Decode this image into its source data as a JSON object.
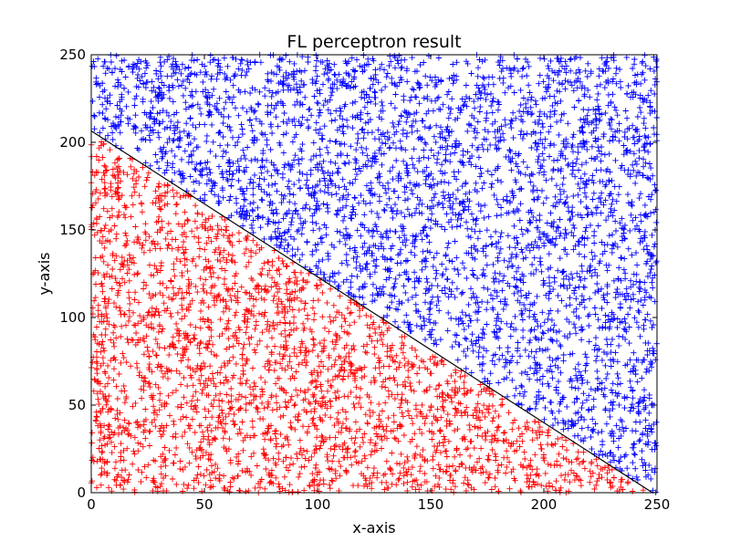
{
  "chart_data": {
    "type": "scatter",
    "title": "FL perceptron result",
    "xlabel": "x-axis",
    "ylabel": "y-axis",
    "xlim": [
      0,
      250
    ],
    "ylim": [
      0,
      250
    ],
    "xticks": [
      0,
      50,
      100,
      150,
      200,
      250
    ],
    "yticks": [
      0,
      50,
      100,
      150,
      200,
      250
    ],
    "grid": false,
    "legend": "none",
    "marker": "plus",
    "series": [
      {
        "color": "#0000ff",
        "region": "above decision boundary",
        "approx_point_count": 4000,
        "x_range": [
          0,
          250
        ],
        "y_range": [
          0,
          250
        ]
      },
      {
        "color": "#ff0000",
        "region": "below decision boundary",
        "approx_point_count": 3700,
        "x_range": [
          0,
          250
        ],
        "y_range": [
          0,
          250
        ]
      }
    ],
    "decision_boundary": {
      "type": "line",
      "color": "#000000",
      "points": [
        [
          0,
          206.5
        ],
        [
          248,
          0
        ]
      ]
    }
  }
}
